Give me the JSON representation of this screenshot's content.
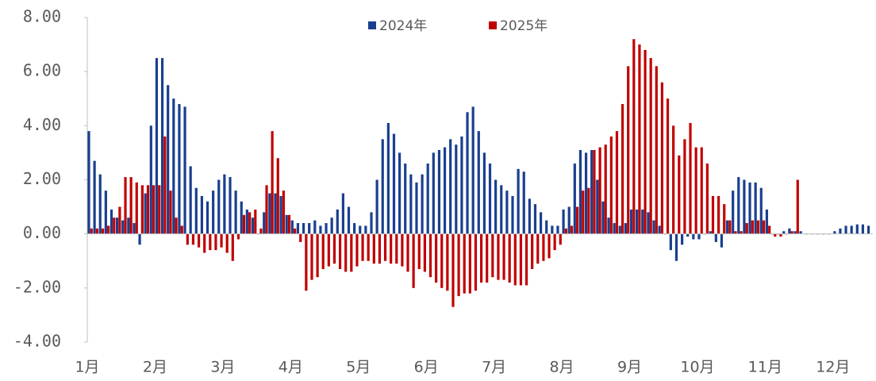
{
  "chart_data": {
    "type": "bar",
    "categories": [
      "1月",
      null,
      null,
      null,
      null,
      null,
      null,
      null,
      null,
      null,
      null,
      null,
      "2月",
      null,
      null,
      null,
      null,
      null,
      null,
      null,
      null,
      null,
      null,
      null,
      "3月",
      null,
      null,
      null,
      null,
      null,
      null,
      null,
      null,
      null,
      null,
      null,
      "4月",
      null,
      null,
      null,
      null,
      null,
      null,
      null,
      null,
      null,
      null,
      null,
      "5月",
      null,
      null,
      null,
      null,
      null,
      null,
      null,
      null,
      null,
      null,
      null,
      "6月",
      null,
      null,
      null,
      null,
      null,
      null,
      null,
      null,
      null,
      null,
      null,
      "7月",
      null,
      null,
      null,
      null,
      null,
      null,
      null,
      null,
      null,
      null,
      null,
      "8月",
      null,
      null,
      null,
      null,
      null,
      null,
      null,
      null,
      null,
      null,
      null,
      "9月",
      null,
      null,
      null,
      null,
      null,
      null,
      null,
      null,
      null,
      null,
      null,
      "10月",
      null,
      null,
      null,
      null,
      null,
      null,
      null,
      null,
      null,
      null,
      null,
      "11月",
      null,
      null,
      null,
      null,
      null,
      null,
      null,
      null,
      null,
      null,
      null,
      "12月",
      null,
      null,
      null,
      null,
      null,
      null
    ],
    "series": [
      {
        "name": "2024年",
        "color": "#1a3f8f",
        "values": [
          3.8,
          2.7,
          2.2,
          1.6,
          0.9,
          0.6,
          0.5,
          0.6,
          0.4,
          -0.4,
          1.5,
          4.0,
          6.5,
          6.5,
          5.5,
          5.0,
          4.8,
          4.7,
          2.5,
          1.7,
          1.4,
          1.2,
          1.6,
          2.0,
          2.2,
          2.1,
          1.6,
          1.2,
          0.9,
          0.6,
          0.0,
          0.8,
          1.5,
          1.5,
          1.4,
          0.7,
          0.5,
          0.4,
          0.4,
          0.4,
          0.5,
          0.3,
          0.4,
          0.6,
          0.9,
          1.5,
          1.0,
          0.4,
          0.3,
          0.3,
          0.8,
          2.0,
          3.5,
          4.1,
          3.7,
          3.0,
          2.6,
          2.2,
          1.9,
          2.2,
          2.6,
          3.0,
          3.1,
          3.2,
          3.5,
          3.3,
          3.6,
          4.5,
          4.7,
          3.8,
          3.0,
          2.6,
          2.0,
          1.8,
          1.6,
          1.4,
          2.4,
          2.3,
          1.3,
          1.1,
          0.8,
          0.5,
          0.3,
          0.3,
          0.9,
          1.0,
          2.6,
          3.1,
          3.0,
          3.1,
          2.0,
          1.2,
          0.6,
          0.4,
          0.3,
          0.4,
          0.9,
          0.9,
          0.9,
          0.8,
          0.5,
          0.3,
          0.0,
          -0.6,
          -1.0,
          -0.4,
          -0.1,
          -0.2,
          -0.2,
          0.0,
          0.1,
          -0.3,
          -0.5,
          0.5,
          1.6,
          2.1,
          2.0,
          1.9,
          1.9,
          1.7,
          0.9,
          0.0,
          0.0,
          0.1,
          0.2,
          0.1,
          0.1,
          0.0,
          0.0,
          0.0,
          0.0,
          0.0,
          0.1,
          0.2,
          0.3,
          0.3,
          0.35,
          0.35,
          0.3
        ]
      },
      {
        "name": "2025年",
        "color": "#c00000",
        "values": [
          0.2,
          0.2,
          0.2,
          0.3,
          0.6,
          1.0,
          2.1,
          2.1,
          1.9,
          1.8,
          1.8,
          1.8,
          1.8,
          3.6,
          1.6,
          0.6,
          0.3,
          -0.4,
          -0.4,
          -0.5,
          -0.7,
          -0.6,
          -0.6,
          -0.5,
          -0.7,
          -1.0,
          -0.2,
          0.7,
          0.8,
          0.9,
          0.2,
          1.8,
          3.8,
          2.8,
          1.6,
          0.7,
          0.2,
          -0.3,
          -2.1,
          -1.7,
          -1.6,
          -1.3,
          -1.2,
          -1.1,
          -1.3,
          -1.4,
          -1.4,
          -1.2,
          -1.0,
          -1.0,
          -1.1,
          -1.1,
          -1.0,
          -1.1,
          -1.1,
          -1.2,
          -1.4,
          -2.0,
          -1.3,
          -1.4,
          -1.6,
          -1.8,
          -2.0,
          -2.1,
          -2.7,
          -2.3,
          -2.2,
          -2.2,
          -2.1,
          -1.8,
          -1.8,
          -1.6,
          -1.7,
          -1.7,
          -1.8,
          -1.9,
          -1.9,
          -1.9,
          -1.3,
          -1.1,
          -1.0,
          -0.9,
          -0.6,
          -0.4,
          0.2,
          0.3,
          1.0,
          1.6,
          1.7,
          3.1,
          3.2,
          3.3,
          3.6,
          3.8,
          4.8,
          6.2,
          7.2,
          7.0,
          6.8,
          6.5,
          6.2,
          5.6,
          5.0,
          4.0,
          2.9,
          3.5,
          4.1,
          3.2,
          3.2,
          2.6,
          1.4,
          1.4,
          1.1,
          0.5,
          0.1,
          0.1,
          0.4,
          0.5,
          0.5,
          0.5,
          0.3,
          -0.1,
          -0.1,
          0.0,
          0.1,
          2.0,
          null,
          null,
          null,
          null,
          null,
          null,
          null,
          null,
          null,
          null,
          null,
          null,
          null
        ]
      }
    ],
    "ylim": [
      -4,
      8
    ],
    "yticks": [
      {
        "value": -4,
        "label": "-4.00"
      },
      {
        "value": -2,
        "label": "-2.00"
      },
      {
        "value": 0,
        "label": "0.00"
      },
      {
        "value": 2,
        "label": "2.00"
      },
      {
        "value": 4,
        "label": "4.00"
      },
      {
        "value": 6,
        "label": "6.00"
      },
      {
        "value": 8,
        "label": "8.00"
      }
    ],
    "legend": "top"
  }
}
